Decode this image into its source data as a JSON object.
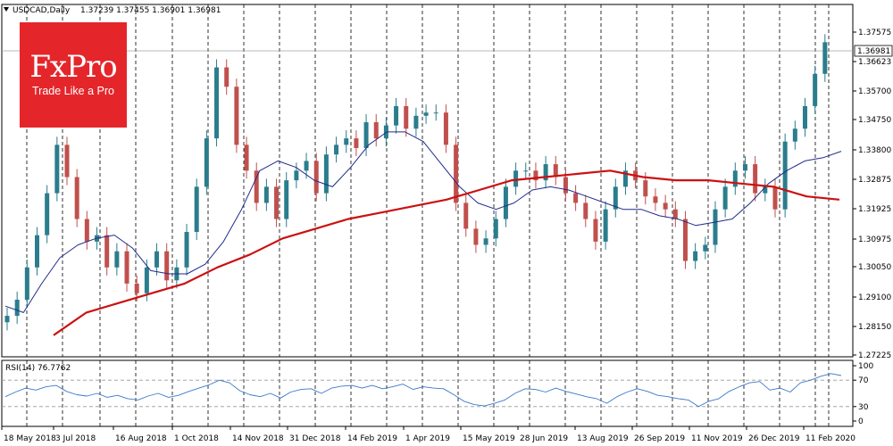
{
  "header": {
    "symbol": "USDCAD,Daily",
    "ohlc": "1.37239 1.37455 1.36901 1.36981"
  },
  "logo": {
    "brand": "FxPro",
    "tagline": "Trade Like a Pro"
  },
  "colors": {
    "up_candle": "#2a7d8c",
    "down_candle": "#c0504d",
    "ma_fast": "#1f2a8a",
    "ma_slow": "#cc1010",
    "rsi_line": "#3a78c8",
    "logo_bg": "#e4262b"
  },
  "chart_data": [
    {
      "type": "line",
      "title": "USDCAD,Daily",
      "subtitle": "1.37239 1.37455 1.36901 1.36981",
      "ylim": [
        1.2723,
        1.3815
      ],
      "y_ticks": [
        "1.37575",
        "1.36623",
        "1.35700",
        "1.34750",
        "1.33800",
        "1.32875",
        "1.31925",
        "1.30975",
        "1.30050",
        "1.29100",
        "1.28150",
        "1.27225"
      ],
      "current_price_label": "1.36981",
      "x_ticks": [
        "18 May 2018",
        "3 Jul 2018",
        "16 Aug 2018",
        "1 Oct 2018",
        "14 Nov 2018",
        "31 Dec 2018",
        "14 Feb 2019",
        "1 Apr 2019",
        "15 May 2019",
        "28 Jun 2019",
        "13 Aug 2019",
        "26 Sep 2019",
        "11 Nov 2019",
        "26 Dec 2019",
        "11 Feb 2020"
      ],
      "grid": true,
      "series": [
        {
          "kind": "candles",
          "close": [
            1.285,
            1.29,
            1.3,
            1.31,
            1.323,
            1.338,
            1.328,
            1.315,
            1.308,
            1.31,
            1.3,
            1.305,
            1.295,
            1.292,
            1.3,
            1.305,
            1.296,
            1.3,
            1.311,
            1.325,
            1.34,
            1.362,
            1.356,
            1.338,
            1.33,
            1.32,
            1.325,
            1.315,
            1.327,
            1.33,
            1.333,
            1.323,
            1.335,
            1.338,
            1.34,
            1.337,
            1.345,
            1.34,
            1.344,
            1.35,
            1.343,
            1.347,
            1.348,
            1.348,
            1.338,
            1.32,
            1.312,
            1.307,
            1.309,
            1.315,
            1.325,
            1.33,
            1.33,
            1.327,
            1.332,
            1.328,
            1.323,
            1.32,
            1.315,
            1.308,
            1.318,
            1.325,
            1.33,
            1.327,
            1.322,
            1.32,
            1.318,
            1.315,
            1.302,
            1.305,
            1.307,
            1.318,
            1.325,
            1.33,
            1.332,
            1.323,
            1.325,
            1.318,
            1.339,
            1.343,
            1.35,
            1.36,
            1.3698
          ],
          "name": ""
        },
        {
          "kind": "ma",
          "values": [
            1.288,
            1.286,
            1.295,
            1.303,
            1.307,
            1.309,
            1.31,
            1.306,
            1.299,
            1.298,
            1.298,
            1.301,
            1.308,
            1.318,
            1.33,
            1.333,
            1.331,
            1.327,
            1.325,
            1.331,
            1.338,
            1.342,
            1.342,
            1.339,
            1.332,
            1.325,
            1.32,
            1.318,
            1.32,
            1.324,
            1.325,
            1.324,
            1.322,
            1.32,
            1.318,
            1.318,
            1.316,
            1.315,
            1.313,
            1.314,
            1.315,
            1.32,
            1.326,
            1.33,
            1.333,
            1.334,
            1.336
          ],
          "name": ""
        },
        {
          "kind": "ma",
          "values": [
            1.279,
            1.286,
            1.289,
            1.292,
            1.295,
            1.3,
            1.304,
            1.309,
            1.312,
            1.315,
            1.317,
            1.319,
            1.321,
            1.324,
            1.327,
            1.328,
            1.329,
            1.33,
            1.328,
            1.327,
            1.327,
            1.326,
            1.325,
            1.322,
            1.321
          ],
          "name": ""
        }
      ]
    },
    {
      "type": "line",
      "title": "RSI(14) 76.7762",
      "ylim": [
        0,
        100
      ],
      "y_ticks": [
        "100",
        "70",
        "30",
        "0"
      ],
      "levels": [
        70,
        30
      ],
      "series": [
        {
          "name": "",
          "values": [
            45,
            52,
            58,
            55,
            60,
            62,
            53,
            48,
            46,
            50,
            44,
            47,
            42,
            40,
            46,
            50,
            44,
            47,
            53,
            58,
            63,
            70,
            66,
            54,
            48,
            45,
            50,
            43,
            52,
            56,
            57,
            50,
            58,
            61,
            62,
            58,
            62,
            57,
            60,
            64,
            56,
            60,
            58,
            57,
            48,
            38,
            33,
            31,
            35,
            40,
            50,
            57,
            56,
            52,
            58,
            53,
            49,
            45,
            42,
            35,
            45,
            52,
            57,
            53,
            47,
            45,
            42,
            40,
            30,
            38,
            42,
            53,
            60,
            66,
            68,
            55,
            58,
            52,
            66,
            70,
            76,
            80,
            77
          ]
        }
      ]
    }
  ]
}
